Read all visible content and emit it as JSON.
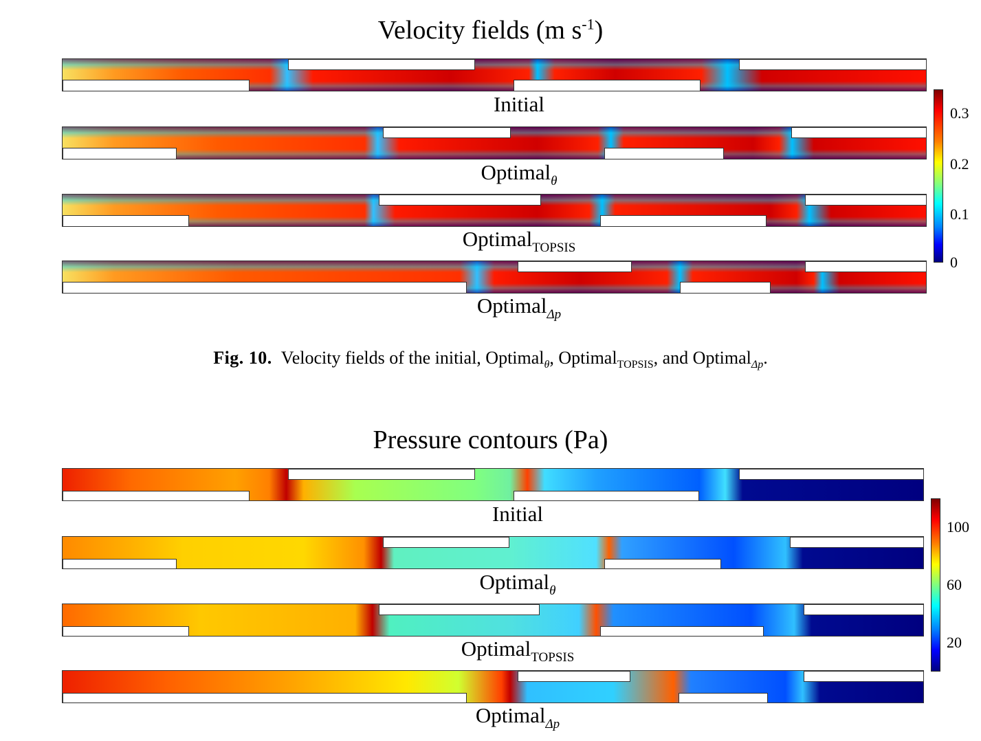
{
  "velocity_figure": {
    "title_text": "Velocity fields (m s",
    "title_sup": "-1",
    "title_close": ")",
    "cases": [
      {
        "label_main": "Initial",
        "label_sub": ""
      },
      {
        "label_main": "Optimal",
        "label_sub": "θ"
      },
      {
        "label_main": "Optimal",
        "label_sub": "TOPSIS"
      },
      {
        "label_main": "Optimal",
        "label_sub": "Δp"
      }
    ],
    "colorbar_ticks": [
      "0.3",
      "0.2",
      "0.1",
      "0"
    ]
  },
  "caption": {
    "label": "Fig. 10.",
    "text_1": "Velocity fields of the initial, Optimal",
    "sub_1": "θ",
    "text_2": ", Optimal",
    "sub_2": "TOPSIS",
    "text_3": ", and Optimal",
    "sub_3": "Δp",
    "text_4": "."
  },
  "pressure_figure": {
    "title": "Pressure contours (Pa)",
    "cases": [
      {
        "label_main": "Initial",
        "label_sub": ""
      },
      {
        "label_main": "Optimal",
        "label_sub": "θ"
      },
      {
        "label_main": "Optimal",
        "label_sub": "TOPSIS"
      },
      {
        "label_main": "Optimal",
        "label_sub": "Δp"
      }
    ],
    "colorbar_ticks": [
      "100",
      "60",
      "20"
    ]
  },
  "colors": {
    "jet_dark_red": "#800000",
    "jet_red": "#ff0000",
    "jet_orange": "#ff8000",
    "jet_yellow": "#ffff00",
    "jet_green": "#80ff80",
    "jet_cyan": "#00ffff",
    "jet_blue": "#0000ff",
    "jet_dark_blue": "#000080"
  }
}
